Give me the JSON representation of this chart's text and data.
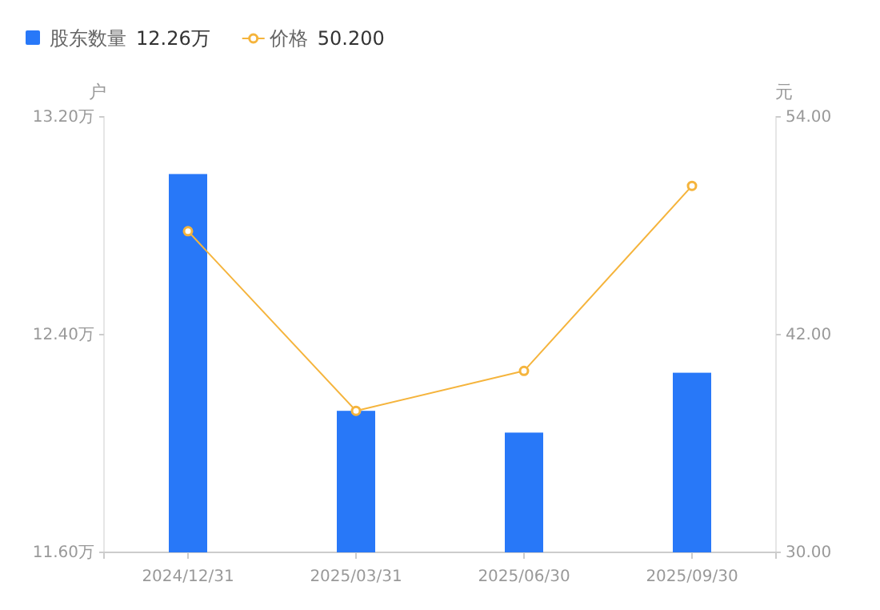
{
  "chart_data": {
    "type": "bar",
    "categories": [
      "2024/12/31",
      "2025/03/31",
      "2025/06/30",
      "2025/09/30"
    ],
    "series": [
      {
        "name": "股东数量",
        "color": "#2878f8",
        "values": [
          12.99,
          12.12,
          12.04,
          12.26
        ]
      },
      {
        "name": "价格",
        "type": "line",
        "axis": "y2",
        "color": "#f5b43c",
        "marker": "circle",
        "values": [
          47.7,
          37.8,
          40.0,
          50.2
        ]
      }
    ],
    "ylabel": "户",
    "y2label": "元",
    "ylim": [
      11.6,
      13.2
    ],
    "yticks": [
      {
        "value": 11.6,
        "label": "11.60万"
      },
      {
        "value": 12.4,
        "label": "12.40万"
      },
      {
        "value": 13.2,
        "label": "13.20万"
      }
    ],
    "y2lim": [
      30,
      54
    ],
    "y2ticks": [
      {
        "value": 30,
        "label": "30.00"
      },
      {
        "value": 42,
        "label": "42.00"
      },
      {
        "value": 54,
        "label": "54.00"
      }
    ],
    "legend": "top left",
    "annotations": [
      "12.26万",
      "50.200"
    ]
  }
}
